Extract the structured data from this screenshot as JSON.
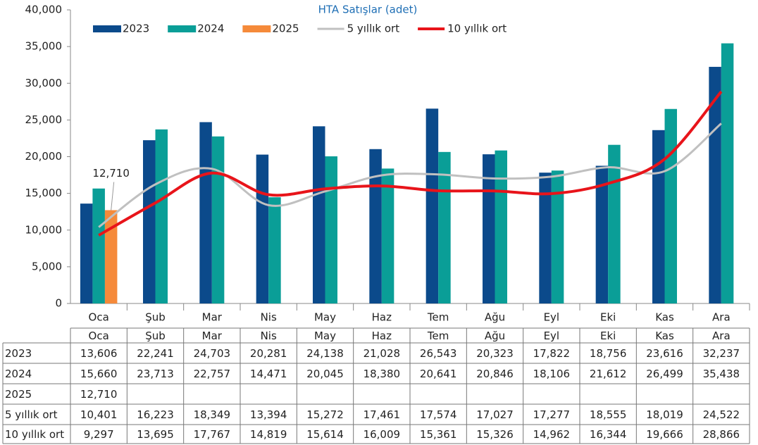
{
  "chart_data": {
    "type": "bar",
    "title": "HTA Satışlar (adet)",
    "categories": [
      "Oca",
      "Şub",
      "Mar",
      "Nis",
      "May",
      "Haz",
      "Tem",
      "Ağu",
      "Eyl",
      "Eki",
      "Kas",
      "Ara"
    ],
    "series": [
      {
        "name": "2023",
        "type": "bar",
        "color": "#0b4a8b",
        "values": [
          13606,
          22241,
          24703,
          20281,
          24138,
          21028,
          26543,
          20323,
          17822,
          18756,
          23616,
          32237
        ],
        "value_labels": [
          "13,606",
          "22,241",
          "24,703",
          "20,281",
          "24,138",
          "21,028",
          "26,543",
          "20,323",
          "17,822",
          "18,756",
          "23,616",
          "32,237"
        ]
      },
      {
        "name": "2024",
        "type": "bar",
        "color": "#0a9e97",
        "values": [
          15660,
          23713,
          22757,
          14471,
          20045,
          18380,
          20641,
          20846,
          18106,
          21612,
          26499,
          35438
        ],
        "value_labels": [
          "15,660",
          "23,713",
          "22,757",
          "14,471",
          "20,045",
          "18,380",
          "20,641",
          "20,846",
          "18,106",
          "21,612",
          "26,499",
          "35,438"
        ]
      },
      {
        "name": "2025",
        "type": "bar",
        "color": "#f58a3a",
        "values": [
          12710,
          null,
          null,
          null,
          null,
          null,
          null,
          null,
          null,
          null,
          null,
          null
        ],
        "value_labels": [
          "12,710",
          null,
          null,
          null,
          null,
          null,
          null,
          null,
          null,
          null,
          null,
          null
        ]
      },
      {
        "name": "5 yıllık ort",
        "type": "line",
        "color": "#c0c0c0",
        "values": [
          10401,
          16223,
          18349,
          13394,
          15272,
          17461,
          17574,
          17027,
          17277,
          18555,
          18019,
          24522
        ],
        "value_labels": [
          "10,401",
          "16,223",
          "18,349",
          "13,394",
          "15,272",
          "17,461",
          "17,574",
          "17,027",
          "17,277",
          "18,555",
          "18,019",
          "24,522"
        ]
      },
      {
        "name": "10 yıllık ort",
        "type": "line",
        "color": "#e8141a",
        "values": [
          9297,
          13695,
          17767,
          14819,
          15614,
          16009,
          15361,
          15326,
          14962,
          16344,
          19666,
          28866
        ],
        "value_labels": [
          "9,297",
          "13,695",
          "17,767",
          "14,819",
          "15,614",
          "16,009",
          "15,361",
          "15,326",
          "14,962",
          "16,344",
          "19,666",
          "28,866"
        ]
      }
    ],
    "ylim": [
      0,
      40000
    ],
    "yticks": [
      0,
      {
        "value": 5000,
        "label": "5,000"
      },
      {
        "value": 10000,
        "label": "10,000"
      },
      {
        "value": 15000,
        "label": "15,000"
      },
      {
        "value": 20000,
        "label": "20,000"
      },
      {
        "value": 25000,
        "label": "25,000"
      },
      {
        "value": 30000,
        "label": "30,000"
      },
      {
        "value": 35000,
        "label": "35,000"
      },
      {
        "value": 40000,
        "label": "40,000"
      }
    ],
    "grid": false,
    "legend": "top"
  }
}
